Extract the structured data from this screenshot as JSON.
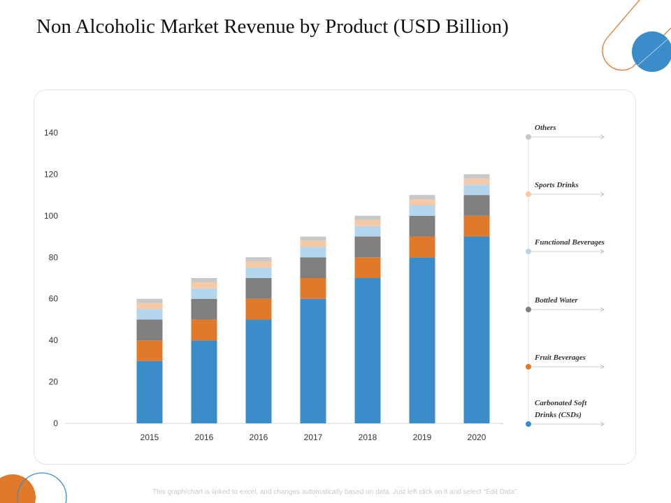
{
  "title": "Non Alcoholic Market Revenue by Product (USD Billion)",
  "footnote": "This graph/chart is linked to excel, and changes automatically based on data. Just left click on it and select “Edit Data”.",
  "colors": {
    "accent_blue": "#3a8dc8",
    "accent_orange": "#e07a2a"
  },
  "chart_data": {
    "type": "bar",
    "stacked": true,
    "categories": [
      "2015",
      "2016",
      "2016",
      "2017",
      "2018",
      "2019",
      "2020"
    ],
    "ylim": [
      0,
      140
    ],
    "yticks": [
      0,
      20,
      40,
      60,
      80,
      100,
      120,
      140
    ],
    "grid": false,
    "legend_position": "right",
    "series": [
      {
        "name": "Carbonated Soft Drinks (CSDs)",
        "label_lines": [
          "Carbonated Soft",
          "Drinks (CSDs)"
        ],
        "color": "#3a8dc8",
        "values": [
          30,
          40,
          50,
          60,
          70,
          80,
          90
        ]
      },
      {
        "name": "Fruit Beverages",
        "label_lines": [
          "Fruit Beverages"
        ],
        "color": "#e07a2a",
        "values": [
          10,
          10,
          10,
          10,
          10,
          10,
          10
        ]
      },
      {
        "name": "Bottled Water",
        "label_lines": [
          "Bottled Water"
        ],
        "color": "#7f7f7f",
        "values": [
          10,
          10,
          10,
          10,
          10,
          10,
          10
        ]
      },
      {
        "name": "Functional Beverages",
        "label_lines": [
          "Functional Beverages"
        ],
        "color": "#b4d5ee",
        "values": [
          5,
          5,
          5,
          5,
          5,
          5,
          5
        ]
      },
      {
        "name": "Sports Drinks",
        "label_lines": [
          "Sports Drinks"
        ],
        "color": "#f5c9a3",
        "values": [
          3,
          3,
          3,
          3,
          3,
          3,
          3
        ]
      },
      {
        "name": "Others",
        "label_lines": [
          "Others"
        ],
        "color": "#c8c8c8",
        "values": [
          2,
          2,
          2,
          2,
          2,
          2,
          2
        ]
      }
    ]
  }
}
